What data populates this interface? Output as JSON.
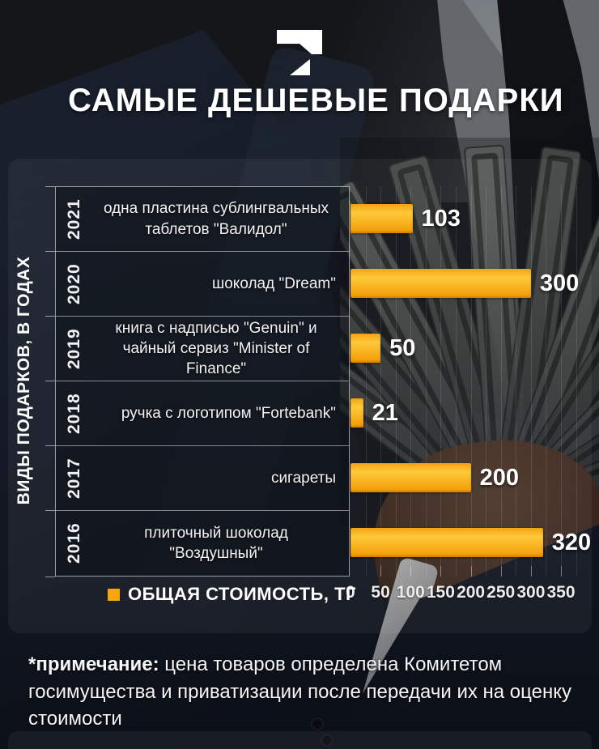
{
  "brand": {
    "logo_icon": "tengrinews-t-logo"
  },
  "title": "САМЫЕ ДЕШЕВЫЕ ПОДАРКИ",
  "chart_data": {
    "type": "bar",
    "orientation": "horizontal",
    "ylabel": "ВИДЫ ПОДАРКОВ, В ГОДАХ",
    "categories": [
      "2021",
      "2020",
      "2019",
      "2018",
      "2017",
      "2016"
    ],
    "labels": [
      "одна пластина сублингвальных таблетов \"Валидол\"",
      "шоколад \"Dream\"",
      "книга с надписью \"Genuin\" и чайный сервиз \"Minister of Finance\"",
      "ручка с логотипом \"Fortebank\"",
      "сигареты",
      "плиточный шоколад \"Воздушный\""
    ],
    "values": [
      103,
      300,
      50,
      21,
      200,
      320
    ],
    "xlim": [
      0,
      350
    ],
    "xticks": [
      0,
      50,
      100,
      150,
      200,
      250,
      300,
      350
    ],
    "grid": true,
    "grid_minor_step": 25,
    "grid_extent": 375,
    "legend": {
      "label": "ОБЩАЯ СТОИМОСТЬ, ТГ",
      "color": "#F9A60A",
      "position": "bottom-left"
    },
    "bar_colors": {
      "top": "#F2A213",
      "mid": "#FFC93A",
      "bottom": "#F19903"
    }
  },
  "note": {
    "lead": "*примечание:",
    "text": " цена товаров определена Комитетом госимущества и приватизации после передачи их на оценку стоимости"
  }
}
